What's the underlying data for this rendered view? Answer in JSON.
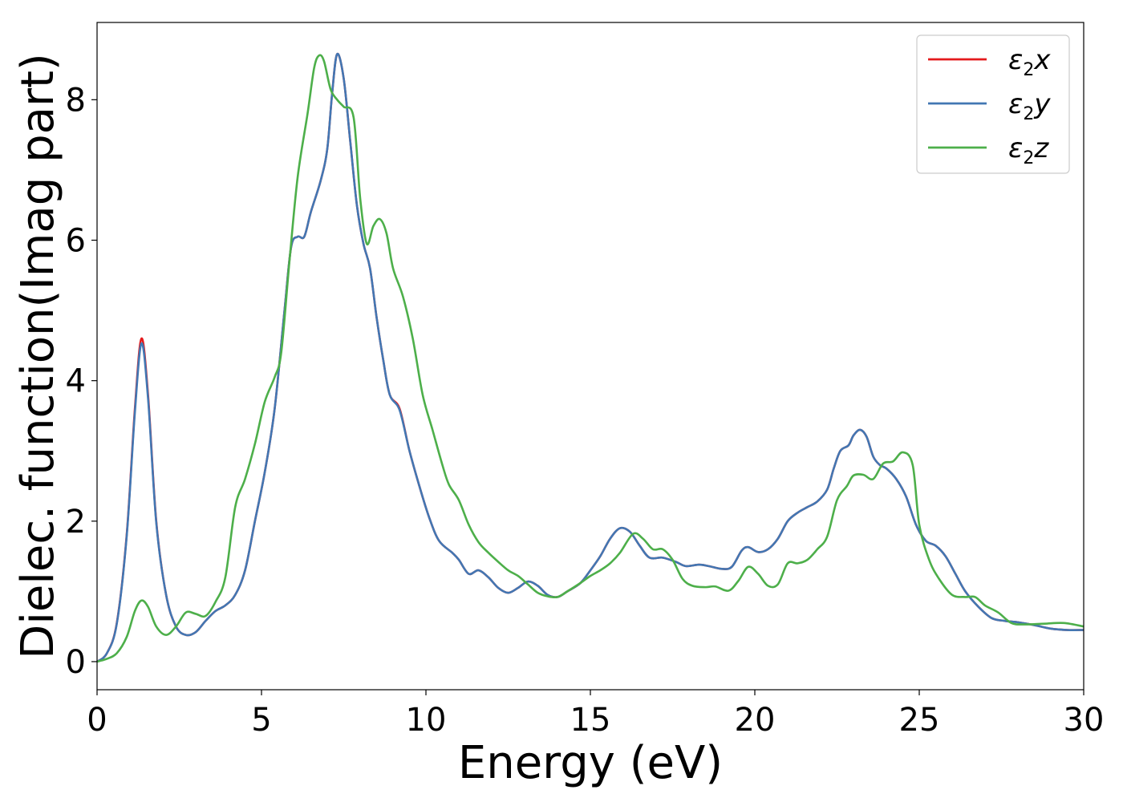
{
  "chart_data": {
    "type": "line",
    "title": "",
    "xlabel": "Energy (eV)",
    "ylabel": "Dielec. function(Imag part)",
    "xlim": [
      0,
      30
    ],
    "ylim": [
      -0.4,
      9.1
    ],
    "xticks": [
      0,
      5,
      10,
      15,
      20,
      25,
      30
    ],
    "yticks": [
      0,
      2,
      4,
      6,
      8
    ],
    "grid": false,
    "legend": "top-right",
    "series": [
      {
        "name": "ε₂x",
        "legend_main": "ε",
        "legend_sub": "2",
        "legend_tail": "x",
        "color": "#e41a1c",
        "points": [
          [
            0,
            0
          ],
          [
            0.3,
            0.12
          ],
          [
            0.6,
            0.55
          ],
          [
            0.9,
            1.8
          ],
          [
            1.15,
            3.6
          ],
          [
            1.35,
            4.6
          ],
          [
            1.55,
            3.8
          ],
          [
            1.8,
            2.0
          ],
          [
            2.1,
            0.95
          ],
          [
            2.4,
            0.5
          ],
          [
            2.7,
            0.38
          ],
          [
            3.0,
            0.42
          ],
          [
            3.3,
            0.58
          ],
          [
            3.6,
            0.72
          ],
          [
            3.9,
            0.8
          ],
          [
            4.2,
            0.95
          ],
          [
            4.5,
            1.3
          ],
          [
            4.8,
            2.0
          ],
          [
            5.1,
            2.7
          ],
          [
            5.4,
            3.6
          ],
          [
            5.7,
            5.0
          ],
          [
            5.9,
            5.9
          ],
          [
            6.1,
            6.05
          ],
          [
            6.3,
            6.05
          ],
          [
            6.5,
            6.4
          ],
          [
            6.8,
            6.85
          ],
          [
            7.0,
            7.3
          ],
          [
            7.15,
            8.1
          ],
          [
            7.3,
            8.65
          ],
          [
            7.5,
            8.3
          ],
          [
            7.7,
            7.4
          ],
          [
            7.9,
            6.5
          ],
          [
            8.1,
            5.95
          ],
          [
            8.3,
            5.6
          ],
          [
            8.5,
            4.9
          ],
          [
            8.7,
            4.3
          ],
          [
            8.9,
            3.8
          ],
          [
            9.2,
            3.6
          ],
          [
            9.5,
            3.0
          ],
          [
            9.8,
            2.5
          ],
          [
            10.1,
            2.05
          ],
          [
            10.4,
            1.72
          ],
          [
            10.8,
            1.55
          ],
          [
            11.0,
            1.45
          ],
          [
            11.3,
            1.25
          ],
          [
            11.6,
            1.3
          ],
          [
            11.9,
            1.2
          ],
          [
            12.2,
            1.05
          ],
          [
            12.5,
            0.98
          ],
          [
            12.8,
            1.05
          ],
          [
            13.1,
            1.14
          ],
          [
            13.4,
            1.08
          ],
          [
            13.7,
            0.95
          ],
          [
            14.0,
            0.92
          ],
          [
            14.3,
            1.0
          ],
          [
            14.7,
            1.12
          ],
          [
            15.0,
            1.3
          ],
          [
            15.3,
            1.5
          ],
          [
            15.6,
            1.75
          ],
          [
            15.9,
            1.9
          ],
          [
            16.2,
            1.85
          ],
          [
            16.5,
            1.65
          ],
          [
            16.8,
            1.48
          ],
          [
            17.2,
            1.48
          ],
          [
            17.6,
            1.42
          ],
          [
            17.9,
            1.36
          ],
          [
            18.3,
            1.38
          ],
          [
            18.6,
            1.36
          ],
          [
            19.0,
            1.32
          ],
          [
            19.3,
            1.35
          ],
          [
            19.6,
            1.58
          ],
          [
            19.8,
            1.63
          ],
          [
            20.1,
            1.56
          ],
          [
            20.4,
            1.6
          ],
          [
            20.7,
            1.75
          ],
          [
            21.0,
            2.0
          ],
          [
            21.3,
            2.12
          ],
          [
            21.6,
            2.2
          ],
          [
            21.9,
            2.28
          ],
          [
            22.2,
            2.45
          ],
          [
            22.4,
            2.75
          ],
          [
            22.6,
            3.0
          ],
          [
            22.85,
            3.08
          ],
          [
            23.0,
            3.22
          ],
          [
            23.2,
            3.3
          ],
          [
            23.4,
            3.2
          ],
          [
            23.6,
            2.92
          ],
          [
            23.8,
            2.8
          ],
          [
            24.0,
            2.75
          ],
          [
            24.3,
            2.6
          ],
          [
            24.6,
            2.35
          ],
          [
            24.9,
            1.95
          ],
          [
            25.2,
            1.72
          ],
          [
            25.5,
            1.65
          ],
          [
            25.8,
            1.5
          ],
          [
            26.1,
            1.25
          ],
          [
            26.4,
            1.0
          ],
          [
            26.8,
            0.78
          ],
          [
            27.2,
            0.62
          ],
          [
            27.6,
            0.58
          ],
          [
            28.0,
            0.56
          ],
          [
            28.5,
            0.52
          ],
          [
            29.0,
            0.47
          ],
          [
            29.5,
            0.45
          ],
          [
            30,
            0.45
          ]
        ]
      },
      {
        "name": "ε₂y",
        "legend_main": "ε",
        "legend_sub": "2",
        "legend_tail": "y",
        "color": "#4277b3",
        "points": [
          [
            0,
            0
          ],
          [
            0.3,
            0.12
          ],
          [
            0.6,
            0.54
          ],
          [
            0.9,
            1.78
          ],
          [
            1.15,
            3.55
          ],
          [
            1.35,
            4.53
          ],
          [
            1.55,
            3.75
          ],
          [
            1.8,
            1.98
          ],
          [
            2.1,
            0.95
          ],
          [
            2.4,
            0.5
          ],
          [
            2.7,
            0.38
          ],
          [
            3.0,
            0.42
          ],
          [
            3.3,
            0.58
          ],
          [
            3.6,
            0.72
          ],
          [
            3.9,
            0.8
          ],
          [
            4.2,
            0.95
          ],
          [
            4.5,
            1.3
          ],
          [
            4.8,
            2.0
          ],
          [
            5.1,
            2.7
          ],
          [
            5.4,
            3.6
          ],
          [
            5.7,
            5.0
          ],
          [
            5.9,
            5.9
          ],
          [
            6.1,
            6.05
          ],
          [
            6.3,
            6.05
          ],
          [
            6.5,
            6.4
          ],
          [
            6.8,
            6.85
          ],
          [
            7.0,
            7.3
          ],
          [
            7.15,
            8.1
          ],
          [
            7.3,
            8.65
          ],
          [
            7.5,
            8.3
          ],
          [
            7.7,
            7.4
          ],
          [
            7.9,
            6.5
          ],
          [
            8.1,
            5.95
          ],
          [
            8.3,
            5.6
          ],
          [
            8.5,
            4.9
          ],
          [
            8.7,
            4.3
          ],
          [
            8.9,
            3.8
          ],
          [
            9.2,
            3.58
          ],
          [
            9.5,
            3.0
          ],
          [
            9.8,
            2.5
          ],
          [
            10.1,
            2.05
          ],
          [
            10.4,
            1.72
          ],
          [
            10.8,
            1.55
          ],
          [
            11.0,
            1.45
          ],
          [
            11.3,
            1.25
          ],
          [
            11.6,
            1.3
          ],
          [
            11.9,
            1.2
          ],
          [
            12.2,
            1.05
          ],
          [
            12.5,
            0.98
          ],
          [
            12.8,
            1.05
          ],
          [
            13.1,
            1.14
          ],
          [
            13.4,
            1.08
          ],
          [
            13.7,
            0.95
          ],
          [
            14.0,
            0.92
          ],
          [
            14.3,
            1.0
          ],
          [
            14.7,
            1.12
          ],
          [
            15.0,
            1.3
          ],
          [
            15.3,
            1.5
          ],
          [
            15.6,
            1.75
          ],
          [
            15.9,
            1.9
          ],
          [
            16.2,
            1.85
          ],
          [
            16.5,
            1.65
          ],
          [
            16.8,
            1.48
          ],
          [
            17.2,
            1.48
          ],
          [
            17.6,
            1.42
          ],
          [
            17.9,
            1.36
          ],
          [
            18.3,
            1.38
          ],
          [
            18.6,
            1.36
          ],
          [
            19.0,
            1.32
          ],
          [
            19.3,
            1.35
          ],
          [
            19.6,
            1.58
          ],
          [
            19.8,
            1.63
          ],
          [
            20.1,
            1.56
          ],
          [
            20.4,
            1.6
          ],
          [
            20.7,
            1.75
          ],
          [
            21.0,
            2.0
          ],
          [
            21.3,
            2.12
          ],
          [
            21.6,
            2.2
          ],
          [
            21.9,
            2.28
          ],
          [
            22.2,
            2.45
          ],
          [
            22.4,
            2.75
          ],
          [
            22.6,
            3.0
          ],
          [
            22.85,
            3.08
          ],
          [
            23.0,
            3.22
          ],
          [
            23.2,
            3.3
          ],
          [
            23.4,
            3.2
          ],
          [
            23.6,
            2.92
          ],
          [
            23.8,
            2.8
          ],
          [
            24.0,
            2.75
          ],
          [
            24.3,
            2.6
          ],
          [
            24.6,
            2.35
          ],
          [
            24.9,
            1.95
          ],
          [
            25.2,
            1.72
          ],
          [
            25.5,
            1.65
          ],
          [
            25.8,
            1.5
          ],
          [
            26.1,
            1.25
          ],
          [
            26.4,
            1.0
          ],
          [
            26.8,
            0.78
          ],
          [
            27.2,
            0.62
          ],
          [
            27.6,
            0.58
          ],
          [
            28.0,
            0.56
          ],
          [
            28.5,
            0.52
          ],
          [
            29.0,
            0.47
          ],
          [
            29.5,
            0.45
          ],
          [
            30,
            0.45
          ]
        ]
      },
      {
        "name": "ε₂z",
        "legend_main": "ε",
        "legend_sub": "2",
        "legend_tail": "z",
        "color": "#4daf4a",
        "points": [
          [
            0,
            0
          ],
          [
            0.3,
            0.04
          ],
          [
            0.6,
            0.12
          ],
          [
            0.9,
            0.35
          ],
          [
            1.15,
            0.72
          ],
          [
            1.35,
            0.87
          ],
          [
            1.55,
            0.78
          ],
          [
            1.8,
            0.5
          ],
          [
            2.1,
            0.38
          ],
          [
            2.4,
            0.5
          ],
          [
            2.7,
            0.7
          ],
          [
            3.0,
            0.68
          ],
          [
            3.3,
            0.65
          ],
          [
            3.6,
            0.85
          ],
          [
            3.9,
            1.2
          ],
          [
            4.2,
            2.2
          ],
          [
            4.5,
            2.6
          ],
          [
            4.8,
            3.1
          ],
          [
            5.1,
            3.7
          ],
          [
            5.4,
            4.05
          ],
          [
            5.6,
            4.4
          ],
          [
            5.85,
            5.7
          ],
          [
            6.1,
            6.9
          ],
          [
            6.4,
            7.8
          ],
          [
            6.6,
            8.45
          ],
          [
            6.75,
            8.63
          ],
          [
            6.9,
            8.55
          ],
          [
            7.1,
            8.15
          ],
          [
            7.3,
            8.0
          ],
          [
            7.5,
            7.9
          ],
          [
            7.8,
            7.75
          ],
          [
            8.0,
            6.6
          ],
          [
            8.2,
            5.95
          ],
          [
            8.4,
            6.2
          ],
          [
            8.6,
            6.3
          ],
          [
            8.8,
            6.1
          ],
          [
            9.0,
            5.6
          ],
          [
            9.3,
            5.2
          ],
          [
            9.6,
            4.6
          ],
          [
            9.9,
            3.8
          ],
          [
            10.2,
            3.3
          ],
          [
            10.5,
            2.8
          ],
          [
            10.7,
            2.52
          ],
          [
            11.0,
            2.3
          ],
          [
            11.3,
            1.95
          ],
          [
            11.6,
            1.7
          ],
          [
            11.9,
            1.55
          ],
          [
            12.2,
            1.42
          ],
          [
            12.5,
            1.3
          ],
          [
            12.8,
            1.22
          ],
          [
            13.1,
            1.1
          ],
          [
            13.4,
            0.98
          ],
          [
            13.7,
            0.93
          ],
          [
            14.0,
            0.92
          ],
          [
            14.3,
            1.0
          ],
          [
            14.7,
            1.12
          ],
          [
            15.0,
            1.22
          ],
          [
            15.3,
            1.3
          ],
          [
            15.6,
            1.4
          ],
          [
            15.9,
            1.55
          ],
          [
            16.3,
            1.82
          ],
          [
            16.6,
            1.75
          ],
          [
            16.9,
            1.6
          ],
          [
            17.2,
            1.6
          ],
          [
            17.5,
            1.45
          ],
          [
            17.8,
            1.18
          ],
          [
            18.1,
            1.08
          ],
          [
            18.5,
            1.06
          ],
          [
            18.8,
            1.07
          ],
          [
            19.2,
            1.01
          ],
          [
            19.5,
            1.15
          ],
          [
            19.8,
            1.35
          ],
          [
            20.1,
            1.25
          ],
          [
            20.4,
            1.08
          ],
          [
            20.7,
            1.1
          ],
          [
            21.0,
            1.4
          ],
          [
            21.3,
            1.4
          ],
          [
            21.6,
            1.45
          ],
          [
            21.9,
            1.6
          ],
          [
            22.2,
            1.78
          ],
          [
            22.5,
            2.3
          ],
          [
            22.8,
            2.5
          ],
          [
            23.0,
            2.65
          ],
          [
            23.3,
            2.66
          ],
          [
            23.6,
            2.6
          ],
          [
            23.9,
            2.82
          ],
          [
            24.2,
            2.85
          ],
          [
            24.5,
            2.98
          ],
          [
            24.8,
            2.8
          ],
          [
            25.0,
            1.95
          ],
          [
            25.3,
            1.45
          ],
          [
            25.6,
            1.18
          ],
          [
            26.0,
            0.95
          ],
          [
            26.4,
            0.92
          ],
          [
            26.7,
            0.92
          ],
          [
            27.0,
            0.8
          ],
          [
            27.4,
            0.7
          ],
          [
            27.8,
            0.55
          ],
          [
            28.2,
            0.53
          ],
          [
            28.8,
            0.54
          ],
          [
            29.4,
            0.55
          ],
          [
            30,
            0.5
          ]
        ]
      }
    ]
  }
}
